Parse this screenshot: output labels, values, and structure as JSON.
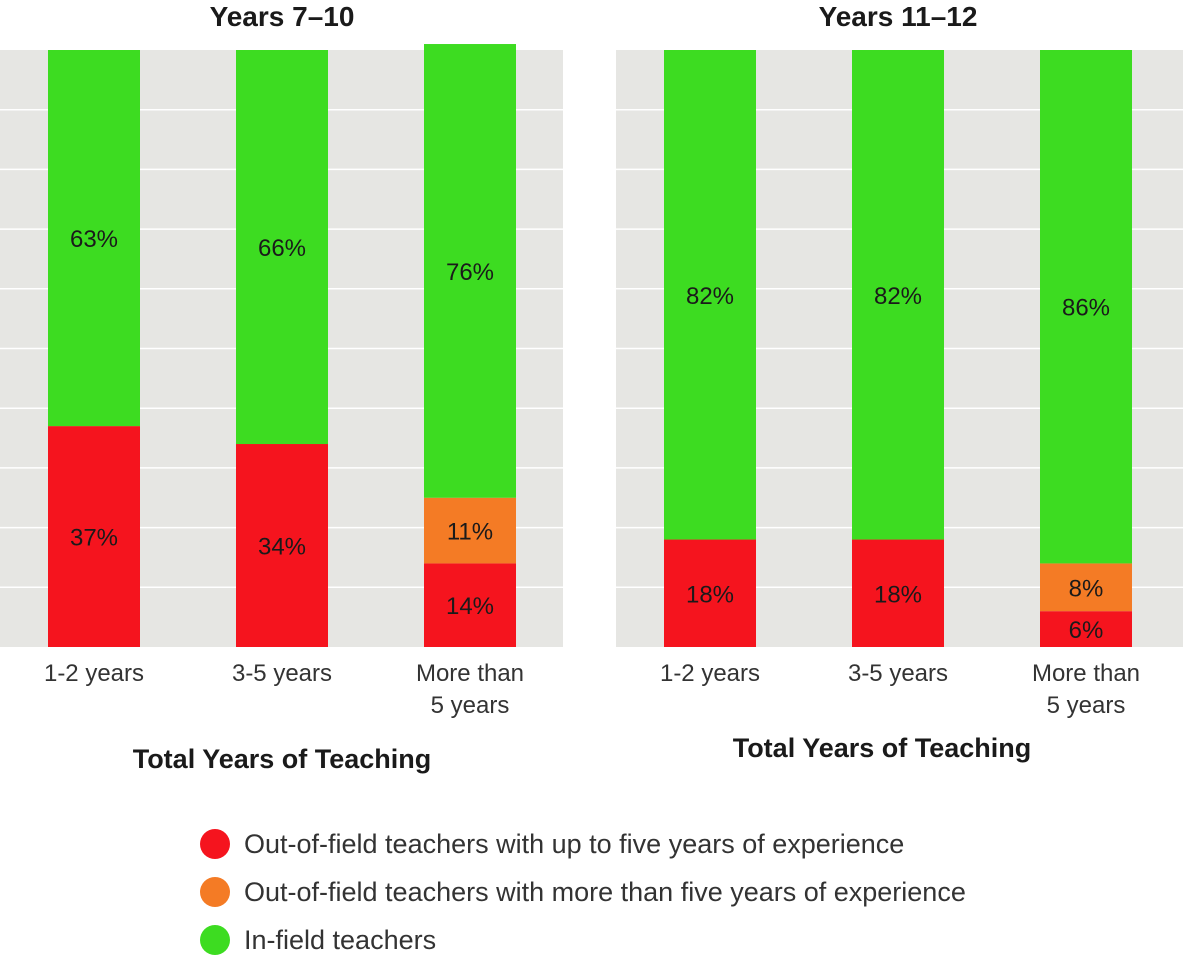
{
  "chart_data": [
    {
      "type": "bar",
      "stacked": true,
      "title": "Years 7–10",
      "xlabel": "Total Years of Teaching",
      "ylabel": "",
      "ylim": [
        0,
        100
      ],
      "grid": true,
      "categories": [
        [
          "1-2 years"
        ],
        [
          "3-5 years"
        ],
        [
          "More than",
          "5 years"
        ]
      ],
      "series": [
        {
          "key": "red",
          "values": [
            37,
            34,
            14
          ]
        },
        {
          "key": "orange",
          "values": [
            0,
            0,
            11
          ]
        },
        {
          "key": "green",
          "values": [
            63,
            66,
            76
          ]
        }
      ]
    },
    {
      "type": "bar",
      "stacked": true,
      "title": "Years 11–12",
      "xlabel": "Total Years of Teaching",
      "ylabel": "",
      "ylim": [
        0,
        100
      ],
      "grid": true,
      "categories": [
        [
          "1-2 years"
        ],
        [
          "3-5 years"
        ],
        [
          "More than",
          "5 years"
        ]
      ],
      "series": [
        {
          "key": "red",
          "values": [
            18,
            18,
            6
          ]
        },
        {
          "key": "orange",
          "values": [
            0,
            0,
            8
          ]
        },
        {
          "key": "green",
          "values": [
            82,
            82,
            86
          ]
        }
      ]
    }
  ],
  "legend": {
    "placement": "bottom",
    "items": [
      {
        "label": "Out-of-field teachers with up to five years of experience",
        "color": "#f5141e"
      },
      {
        "label": "Out-of-field teachers with more than five years of experience",
        "color": "#f47b25"
      },
      {
        "label": "In-field teachers",
        "color": "#3ddc21"
      }
    ]
  },
  "colors": {
    "red": "#f5141e",
    "orange": "#f47b25",
    "green": "#3ddc21",
    "plot_background": "#e6e6e3",
    "gridline": "#ffffff"
  }
}
